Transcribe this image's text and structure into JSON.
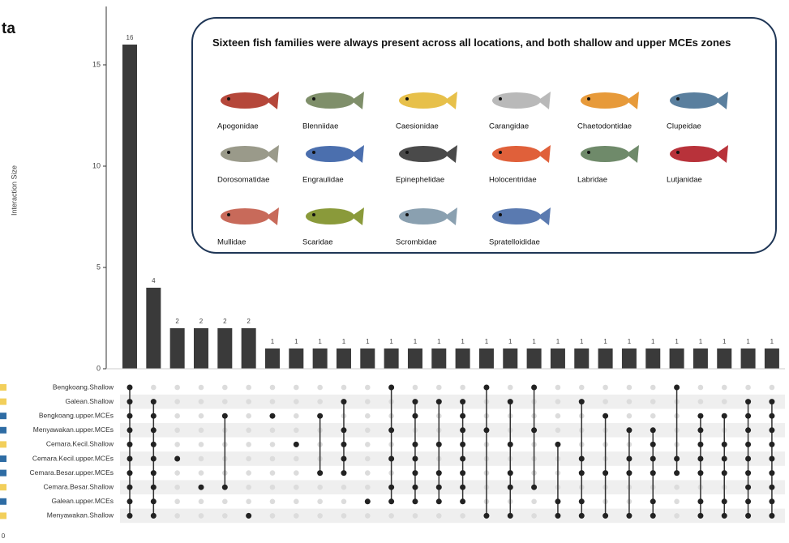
{
  "title_fragment": "ta",
  "chart_data": {
    "type": "upset",
    "ylabel": "Interaction Size",
    "ylim": [
      0,
      17.8
    ],
    "yticks": [
      0,
      5,
      10,
      15
    ],
    "values": [
      16,
      4,
      2,
      2,
      2,
      2,
      1,
      1,
      1,
      1,
      1,
      1,
      1,
      1,
      1,
      1,
      1,
      1,
      1,
      1,
      1,
      1,
      1,
      1,
      1,
      1,
      1,
      1
    ],
    "color": "#3a3a3a",
    "sets": [
      {
        "name": "Bengkoang.Shallow",
        "color": "#f2cf5b"
      },
      {
        "name": "Galean.Shallow",
        "color": "#f2cf5b"
      },
      {
        "name": "Bengkoang.upper.MCEs",
        "color": "#2e6ca4"
      },
      {
        "name": "Menyawakan.upper.MCEs",
        "color": "#2e6ca4"
      },
      {
        "name": "Cemara.Kecil.Shallow",
        "color": "#f2cf5b"
      },
      {
        "name": "Cemara.Kecil.upper.MCEs",
        "color": "#2e6ca4"
      },
      {
        "name": "Cemara.Besar.upper.MCEs",
        "color": "#2e6ca4"
      },
      {
        "name": "Cemara.Besar.Shallow",
        "color": "#f2cf5b"
      },
      {
        "name": "Galean.upper.MCEs",
        "color": "#2e6ca4"
      },
      {
        "name": "Menyawakan.Shallow",
        "color": "#f2cf5b"
      }
    ],
    "set_size_ticks": [
      0
    ],
    "intersections": [
      [
        0,
        1,
        2,
        3,
        4,
        5,
        6,
        7,
        8,
        9
      ],
      [
        1,
        2,
        3,
        4,
        5,
        6,
        7,
        8,
        9
      ],
      [
        5
      ],
      [
        7
      ],
      [
        2,
        7
      ],
      [
        9
      ],
      [
        2
      ],
      [
        4
      ],
      [
        2,
        6
      ],
      [
        1,
        3,
        4,
        5,
        6
      ],
      [
        8
      ],
      [
        0,
        3,
        5,
        7,
        8
      ],
      [
        1,
        2,
        4,
        5,
        6,
        7,
        8
      ],
      [
        1,
        4,
        6,
        7,
        8
      ],
      [
        1,
        2,
        3,
        4,
        5,
        6,
        7,
        8
      ],
      [
        0,
        3,
        9
      ],
      [
        1,
        4,
        6,
        7,
        9
      ],
      [
        0,
        3,
        7
      ],
      [
        4,
        8,
        9
      ],
      [
        1,
        5,
        6,
        8,
        9
      ],
      [
        2,
        6,
        9
      ],
      [
        3,
        5,
        6,
        9
      ],
      [
        3,
        4,
        5,
        6,
        8,
        9
      ],
      [
        0,
        5,
        6
      ],
      [
        2,
        3,
        4,
        5,
        6,
        8,
        9
      ],
      [
        2,
        4,
        5,
        6,
        8,
        9
      ],
      [
        1,
        2,
        3,
        4,
        5,
        6,
        7,
        8,
        9
      ],
      [
        1,
        2,
        3,
        4,
        5,
        6,
        7,
        8,
        9
      ]
    ],
    "annotation": {
      "title": "Sixteen fish families were always present across all locations, and both shallow and upper MCEs zones",
      "families": [
        "Apogonidae",
        "Blenniidae",
        "Caesionidae",
        "Carangidae",
        "Chaetodontidae",
        "Clupeidae",
        "Dorosomatidae",
        "Engraulidae",
        "Epinephelidae",
        "Holocentridae",
        "Labridae",
        "Lutjanidae",
        "Mullidae",
        "Scaridae",
        "Scrombidae",
        "Spratelloididae"
      ]
    }
  }
}
